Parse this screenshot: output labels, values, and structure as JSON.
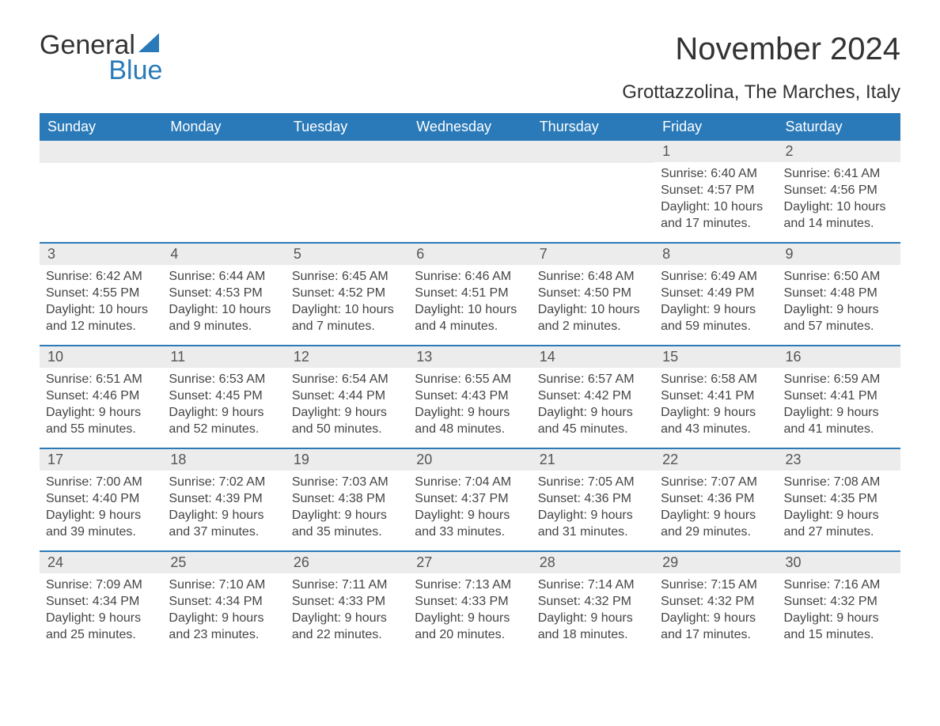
{
  "logo": {
    "text_general": "General",
    "text_blue": "Blue",
    "sail_color": "#2a7ab9"
  },
  "colors": {
    "header_bg": "#2a7ab9",
    "header_text": "#ffffff",
    "daynum_bg": "#ececec",
    "row_border": "#2a7ab9",
    "body_text": "#333333"
  },
  "title": "November 2024",
  "location": "Grottazzolina, The Marches, Italy",
  "day_headers": [
    "Sunday",
    "Monday",
    "Tuesday",
    "Wednesday",
    "Thursday",
    "Friday",
    "Saturday"
  ],
  "weeks": [
    [
      {
        "empty": true
      },
      {
        "empty": true
      },
      {
        "empty": true
      },
      {
        "empty": true
      },
      {
        "empty": true
      },
      {
        "num": "1",
        "sunrise": "Sunrise: 6:40 AM",
        "sunset": "Sunset: 4:57 PM",
        "daylight1": "Daylight: 10 hours",
        "daylight2": "and 17 minutes."
      },
      {
        "num": "2",
        "sunrise": "Sunrise: 6:41 AM",
        "sunset": "Sunset: 4:56 PM",
        "daylight1": "Daylight: 10 hours",
        "daylight2": "and 14 minutes."
      }
    ],
    [
      {
        "num": "3",
        "sunrise": "Sunrise: 6:42 AM",
        "sunset": "Sunset: 4:55 PM",
        "daylight1": "Daylight: 10 hours",
        "daylight2": "and 12 minutes."
      },
      {
        "num": "4",
        "sunrise": "Sunrise: 6:44 AM",
        "sunset": "Sunset: 4:53 PM",
        "daylight1": "Daylight: 10 hours",
        "daylight2": "and 9 minutes."
      },
      {
        "num": "5",
        "sunrise": "Sunrise: 6:45 AM",
        "sunset": "Sunset: 4:52 PM",
        "daylight1": "Daylight: 10 hours",
        "daylight2": "and 7 minutes."
      },
      {
        "num": "6",
        "sunrise": "Sunrise: 6:46 AM",
        "sunset": "Sunset: 4:51 PM",
        "daylight1": "Daylight: 10 hours",
        "daylight2": "and 4 minutes."
      },
      {
        "num": "7",
        "sunrise": "Sunrise: 6:48 AM",
        "sunset": "Sunset: 4:50 PM",
        "daylight1": "Daylight: 10 hours",
        "daylight2": "and 2 minutes."
      },
      {
        "num": "8",
        "sunrise": "Sunrise: 6:49 AM",
        "sunset": "Sunset: 4:49 PM",
        "daylight1": "Daylight: 9 hours",
        "daylight2": "and 59 minutes."
      },
      {
        "num": "9",
        "sunrise": "Sunrise: 6:50 AM",
        "sunset": "Sunset: 4:48 PM",
        "daylight1": "Daylight: 9 hours",
        "daylight2": "and 57 minutes."
      }
    ],
    [
      {
        "num": "10",
        "sunrise": "Sunrise: 6:51 AM",
        "sunset": "Sunset: 4:46 PM",
        "daylight1": "Daylight: 9 hours",
        "daylight2": "and 55 minutes."
      },
      {
        "num": "11",
        "sunrise": "Sunrise: 6:53 AM",
        "sunset": "Sunset: 4:45 PM",
        "daylight1": "Daylight: 9 hours",
        "daylight2": "and 52 minutes."
      },
      {
        "num": "12",
        "sunrise": "Sunrise: 6:54 AM",
        "sunset": "Sunset: 4:44 PM",
        "daylight1": "Daylight: 9 hours",
        "daylight2": "and 50 minutes."
      },
      {
        "num": "13",
        "sunrise": "Sunrise: 6:55 AM",
        "sunset": "Sunset: 4:43 PM",
        "daylight1": "Daylight: 9 hours",
        "daylight2": "and 48 minutes."
      },
      {
        "num": "14",
        "sunrise": "Sunrise: 6:57 AM",
        "sunset": "Sunset: 4:42 PM",
        "daylight1": "Daylight: 9 hours",
        "daylight2": "and 45 minutes."
      },
      {
        "num": "15",
        "sunrise": "Sunrise: 6:58 AM",
        "sunset": "Sunset: 4:41 PM",
        "daylight1": "Daylight: 9 hours",
        "daylight2": "and 43 minutes."
      },
      {
        "num": "16",
        "sunrise": "Sunrise: 6:59 AM",
        "sunset": "Sunset: 4:41 PM",
        "daylight1": "Daylight: 9 hours",
        "daylight2": "and 41 minutes."
      }
    ],
    [
      {
        "num": "17",
        "sunrise": "Sunrise: 7:00 AM",
        "sunset": "Sunset: 4:40 PM",
        "daylight1": "Daylight: 9 hours",
        "daylight2": "and 39 minutes."
      },
      {
        "num": "18",
        "sunrise": "Sunrise: 7:02 AM",
        "sunset": "Sunset: 4:39 PM",
        "daylight1": "Daylight: 9 hours",
        "daylight2": "and 37 minutes."
      },
      {
        "num": "19",
        "sunrise": "Sunrise: 7:03 AM",
        "sunset": "Sunset: 4:38 PM",
        "daylight1": "Daylight: 9 hours",
        "daylight2": "and 35 minutes."
      },
      {
        "num": "20",
        "sunrise": "Sunrise: 7:04 AM",
        "sunset": "Sunset: 4:37 PM",
        "daylight1": "Daylight: 9 hours",
        "daylight2": "and 33 minutes."
      },
      {
        "num": "21",
        "sunrise": "Sunrise: 7:05 AM",
        "sunset": "Sunset: 4:36 PM",
        "daylight1": "Daylight: 9 hours",
        "daylight2": "and 31 minutes."
      },
      {
        "num": "22",
        "sunrise": "Sunrise: 7:07 AM",
        "sunset": "Sunset: 4:36 PM",
        "daylight1": "Daylight: 9 hours",
        "daylight2": "and 29 minutes."
      },
      {
        "num": "23",
        "sunrise": "Sunrise: 7:08 AM",
        "sunset": "Sunset: 4:35 PM",
        "daylight1": "Daylight: 9 hours",
        "daylight2": "and 27 minutes."
      }
    ],
    [
      {
        "num": "24",
        "sunrise": "Sunrise: 7:09 AM",
        "sunset": "Sunset: 4:34 PM",
        "daylight1": "Daylight: 9 hours",
        "daylight2": "and 25 minutes."
      },
      {
        "num": "25",
        "sunrise": "Sunrise: 7:10 AM",
        "sunset": "Sunset: 4:34 PM",
        "daylight1": "Daylight: 9 hours",
        "daylight2": "and 23 minutes."
      },
      {
        "num": "26",
        "sunrise": "Sunrise: 7:11 AM",
        "sunset": "Sunset: 4:33 PM",
        "daylight1": "Daylight: 9 hours",
        "daylight2": "and 22 minutes."
      },
      {
        "num": "27",
        "sunrise": "Sunrise: 7:13 AM",
        "sunset": "Sunset: 4:33 PM",
        "daylight1": "Daylight: 9 hours",
        "daylight2": "and 20 minutes."
      },
      {
        "num": "28",
        "sunrise": "Sunrise: 7:14 AM",
        "sunset": "Sunset: 4:32 PM",
        "daylight1": "Daylight: 9 hours",
        "daylight2": "and 18 minutes."
      },
      {
        "num": "29",
        "sunrise": "Sunrise: 7:15 AM",
        "sunset": "Sunset: 4:32 PM",
        "daylight1": "Daylight: 9 hours",
        "daylight2": "and 17 minutes."
      },
      {
        "num": "30",
        "sunrise": "Sunrise: 7:16 AM",
        "sunset": "Sunset: 4:32 PM",
        "daylight1": "Daylight: 9 hours",
        "daylight2": "and 15 minutes."
      }
    ]
  ]
}
